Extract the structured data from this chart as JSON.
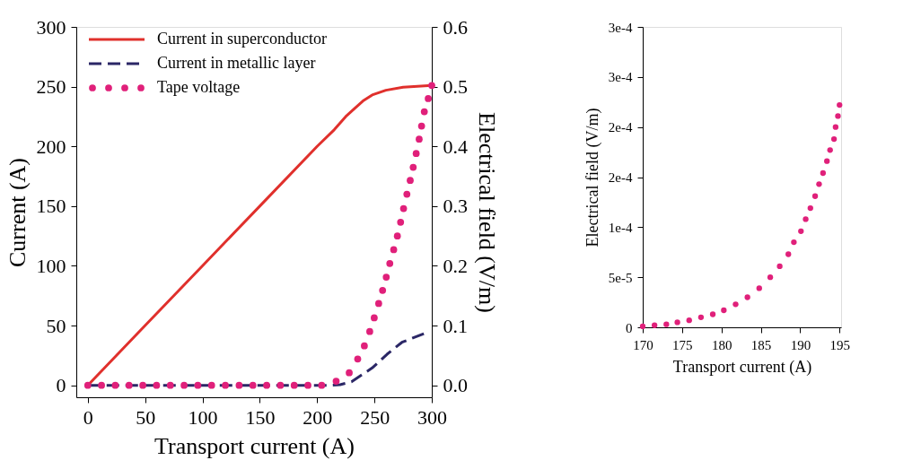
{
  "chart_data": [
    {
      "type": "line",
      "xlabel": "Transport current (A)",
      "ylabel": "Current (A)",
      "y2label": "Electrical field (V/m)",
      "xlim": [
        -10,
        300
      ],
      "ylim": [
        -10,
        300
      ],
      "y2lim": [
        -0.02,
        0.6
      ],
      "xticks": [
        0,
        50,
        100,
        150,
        200,
        250,
        300
      ],
      "yticks": [
        0,
        50,
        100,
        150,
        200,
        250,
        300
      ],
      "y2ticks": [
        {
          "value": 0,
          "label": "0.0"
        },
        0.1,
        0.2,
        0.3,
        0.4,
        0.5,
        0.6
      ],
      "grid": false,
      "legend": "top left",
      "series": [
        {
          "name": "Current in superconductor",
          "type": "line",
          "line_style": "solid",
          "color": "#e0302c",
          "x": [
            0,
            50,
            100,
            150,
            200,
            215,
            225,
            233,
            240,
            248,
            260,
            275,
            300
          ],
          "values": [
            0,
            50,
            100,
            150,
            200,
            214,
            225,
            232,
            238,
            243,
            247,
            249.5,
            251
          ]
        },
        {
          "name": "Current in metallic layer",
          "type": "line",
          "line_style": "dashed",
          "color": "#2b2766",
          "x": [
            0,
            210,
            220,
            230,
            248,
            261,
            274,
            295
          ],
          "values": [
            0,
            0,
            0.5,
            3,
            14.5,
            26,
            36,
            44
          ]
        },
        {
          "name": "Tape voltage",
          "type": "scatter",
          "marker": "circle",
          "axis": "y2",
          "color": "#e0207a",
          "x": [
            0,
            12,
            24,
            36,
            48,
            60,
            72,
            84,
            96,
            108,
            120,
            132,
            144,
            156,
            168,
            180,
            192,
            204,
            216.6,
            228,
            235.4,
            241.2,
            245.9,
            249.8,
            253.7,
            257.1,
            260.3,
            263.4,
            266.8,
            270,
            272.8,
            275.4,
            278.3,
            281.2,
            283.8,
            286.4,
            289,
            291.1,
            293.5,
            296.9,
            300
          ],
          "values": [
            0,
            0,
            0,
            0,
            0,
            0,
            0,
            0,
            0,
            0,
            0,
            0,
            0,
            0,
            0,
            0,
            0,
            0,
            0.007,
            0.021,
            0.044,
            0.066,
            0.09,
            0.113,
            0.137,
            0.159,
            0.181,
            0.204,
            0.227,
            0.25,
            0.273,
            0.296,
            0.32,
            0.343,
            0.365,
            0.388,
            0.412,
            0.434,
            0.458,
            0.48,
            0.502
          ]
        }
      ]
    },
    {
      "type": "scatter",
      "xlabel": "Transport current (A)",
      "ylabel": "Electrical field (V/m)",
      "xlim": [
        170,
        195.2
      ],
      "ylim": [
        0,
        0.0003
      ],
      "xticks": [
        170,
        175,
        180,
        185,
        190,
        195
      ],
      "yticks": [
        {
          "value": 0,
          "label": "0"
        },
        {
          "value": 5e-05,
          "label": "5e-5"
        },
        {
          "value": 0.0001,
          "label": "1e-4"
        },
        {
          "value": 0.00015,
          "label": "2e-4"
        },
        {
          "value": 0.0002,
          "label": "2e-4"
        },
        {
          "value": 0.00025,
          "label": "3e-4"
        },
        {
          "value": 0.0003,
          "label": "3e-4"
        }
      ],
      "grid": false,
      "marker": "circle",
      "series": [
        {
          "color": "#e0207a",
          "x": [
            170.0,
            171.5,
            173.0,
            174.4,
            175.9,
            177.4,
            178.9,
            180.3,
            181.8,
            183.3,
            184.8,
            186.2,
            187.4,
            188.5,
            189.2,
            190.1,
            190.7,
            191.3,
            191.9,
            192.4,
            192.9,
            193.4,
            193.8,
            194.3,
            194.5,
            194.8,
            195.0
          ],
          "values": [
            1e-06,
            2e-06,
            3e-06,
            5e-06,
            7e-06,
            1e-05,
            1.3e-05,
            1.7e-05,
            2.3e-05,
            3e-05,
            3.9e-05,
            5e-05,
            6.1e-05,
            7.3e-05,
            8.5e-05,
            9.6e-05,
            0.000108,
            0.000119,
            0.000131,
            0.000143,
            0.000154,
            0.000166,
            0.000177,
            0.000188,
            0.0002,
            0.000211,
            0.000222
          ]
        }
      ]
    }
  ]
}
